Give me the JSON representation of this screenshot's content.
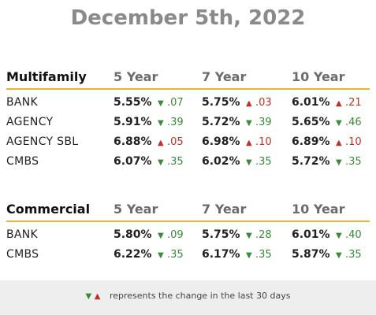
{
  "title": "December 5th, 2022",
  "columns": [
    "5 Year",
    "7 Year",
    "10 Year"
  ],
  "multifamily": {
    "label": "Multifamily",
    "rows": [
      {
        "name": "BANK",
        "cells": [
          {
            "rate": "5.55%",
            "dir": "down",
            "chg": ".07"
          },
          {
            "rate": "5.75%",
            "dir": "up",
            "chg": ".03"
          },
          {
            "rate": "6.01%",
            "dir": "up",
            "chg": ".21"
          }
        ]
      },
      {
        "name": "AGENCY",
        "cells": [
          {
            "rate": "5.91%",
            "dir": "down",
            "chg": ".39"
          },
          {
            "rate": "5.72%",
            "dir": "down",
            "chg": ".39"
          },
          {
            "rate": "5.65%",
            "dir": "down",
            "chg": ".46"
          }
        ]
      },
      {
        "name": "AGENCY SBL",
        "cells": [
          {
            "rate": "6.88%",
            "dir": "up",
            "chg": ".05"
          },
          {
            "rate": "6.98%",
            "dir": "up",
            "chg": ".10"
          },
          {
            "rate": "6.89%",
            "dir": "up",
            "chg": ".10"
          }
        ]
      },
      {
        "name": "CMBS",
        "cells": [
          {
            "rate": "6.07%",
            "dir": "down",
            "chg": ".35"
          },
          {
            "rate": "6.02%",
            "dir": "down",
            "chg": ".35"
          },
          {
            "rate": "5.72%",
            "dir": "down",
            "chg": ".35"
          }
        ]
      }
    ]
  },
  "commercial": {
    "label": "Commercial",
    "rows": [
      {
        "name": "BANK",
        "cells": [
          {
            "rate": "5.80%",
            "dir": "down",
            "chg": ".09"
          },
          {
            "rate": "5.75%",
            "dir": "down",
            "chg": ".28"
          },
          {
            "rate": "6.01%",
            "dir": "down",
            "chg": ".40"
          }
        ]
      },
      {
        "name": "CMBS",
        "cells": [
          {
            "rate": "6.22%",
            "dir": "down",
            "chg": ".35"
          },
          {
            "rate": "6.17%",
            "dir": "down",
            "chg": ".35"
          },
          {
            "rate": "5.87%",
            "dir": "down",
            "chg": ".35"
          }
        ]
      }
    ]
  },
  "footer": {
    "down_symbol": "▼",
    "up_symbol": "▲",
    "text": "represents the change in the last 30 days"
  },
  "colors": {
    "down": "#3a8a3a",
    "up": "#c0302a",
    "divider": "#f0b030",
    "title": "#8a8a8a"
  }
}
